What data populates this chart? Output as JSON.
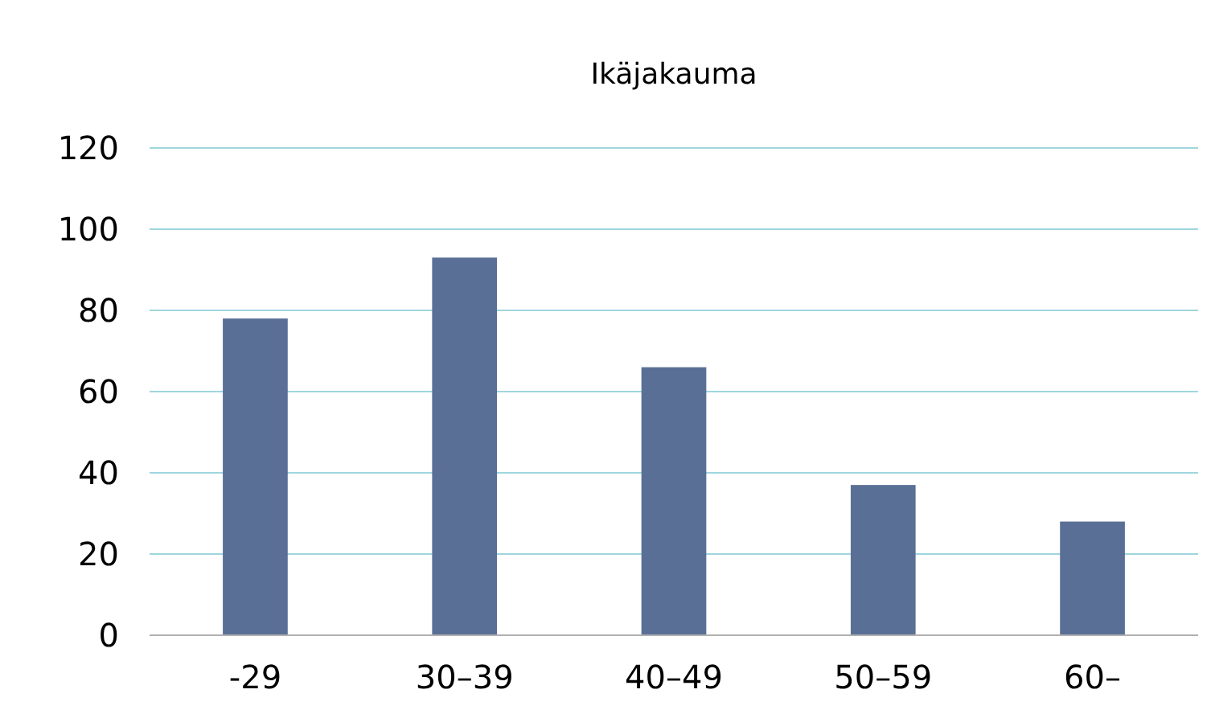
{
  "chart_data": {
    "type": "bar",
    "title": "Ikäjakauma",
    "categories": [
      "-29",
      "30–39",
      "40–49",
      "50–59",
      "60–"
    ],
    "values": [
      78,
      93,
      66,
      37,
      28
    ],
    "color": "#5a6f96",
    "ylim": [
      0,
      120
    ],
    "yticks": [
      0,
      20,
      40,
      60,
      80,
      100,
      120
    ],
    "grid": "y"
  }
}
